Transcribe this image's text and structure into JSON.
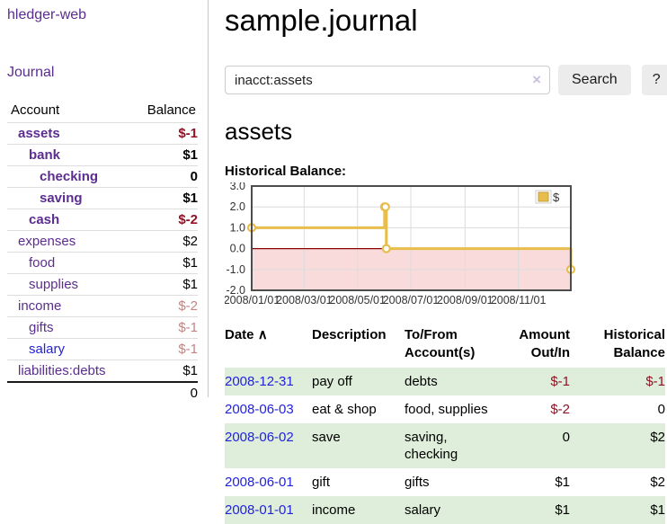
{
  "sidebar": {
    "brand": "hledger-web",
    "journal_label": "Journal",
    "accounts_header": {
      "account": "Account",
      "balance": "Balance"
    },
    "accounts": [
      {
        "name": "assets",
        "balance": "$-1",
        "indent": 1,
        "bold": true,
        "balance_tone": "neg-strong",
        "link_tone": "purple"
      },
      {
        "name": "bank",
        "balance": "$1",
        "indent": 2,
        "bold": true,
        "balance_tone": "pos",
        "link_tone": "purple"
      },
      {
        "name": "checking",
        "balance": "0",
        "indent": 3,
        "bold": true,
        "balance_tone": "pos",
        "link_tone": "purple"
      },
      {
        "name": "saving",
        "balance": "$1",
        "indent": 3,
        "bold": true,
        "balance_tone": "pos",
        "link_tone": "purple"
      },
      {
        "name": "cash",
        "balance": "$-2",
        "indent": 2,
        "bold": true,
        "balance_tone": "neg-strong",
        "link_tone": "purple"
      },
      {
        "name": "expenses",
        "balance": "$2",
        "indent": 1,
        "bold": false,
        "balance_tone": "pos",
        "link_tone": "purple"
      },
      {
        "name": "food",
        "balance": "$1",
        "indent": 2,
        "bold": false,
        "balance_tone": "pos",
        "link_tone": "purple"
      },
      {
        "name": "supplies",
        "balance": "$1",
        "indent": 2,
        "bold": false,
        "balance_tone": "pos",
        "link_tone": "purple"
      },
      {
        "name": "income",
        "balance": "$-2",
        "indent": 1,
        "bold": false,
        "balance_tone": "neg-soft",
        "link_tone": "purple"
      },
      {
        "name": "gifts",
        "balance": "$-1",
        "indent": 2,
        "bold": false,
        "balance_tone": "neg-soft",
        "link_tone": "purple"
      },
      {
        "name": "salary",
        "balance": "$-1",
        "indent": 2,
        "bold": false,
        "balance_tone": "neg-soft",
        "link_tone": "blue"
      },
      {
        "name": "liabilities:debts",
        "balance": "$1",
        "indent": 1,
        "bold": false,
        "balance_tone": "pos",
        "link_tone": "purple"
      }
    ],
    "total": "0"
  },
  "main": {
    "title": "sample.journal",
    "search": {
      "query": "inacct:assets",
      "clear_icon": "×",
      "button_label": "Search",
      "help_label": "?"
    },
    "account_heading": "assets",
    "register": {
      "headers": {
        "date": "Date",
        "sort_icon": "∧",
        "description": "Description",
        "accounts": "To/From Account(s)",
        "amount": "Amount Out/In",
        "balance": "Historical Balance"
      },
      "rows": [
        {
          "date": "2008-12-31",
          "description": "pay off",
          "accounts": "debts",
          "amount": "$-1",
          "amount_tone": "neg",
          "balance": "$-1",
          "balance_tone": "neg"
        },
        {
          "date": "2008-06-03",
          "description": "eat & shop",
          "accounts": "food, supplies",
          "amount": "$-2",
          "amount_tone": "neg",
          "balance": "0",
          "balance_tone": "pos"
        },
        {
          "date": "2008-06-02",
          "description": "save",
          "accounts": "saving, checking",
          "amount": "0",
          "amount_tone": "pos",
          "balance": "$2",
          "balance_tone": "pos"
        },
        {
          "date": "2008-06-01",
          "description": "gift",
          "accounts": "gifts",
          "amount": "$1",
          "amount_tone": "pos",
          "balance": "$2",
          "balance_tone": "pos"
        },
        {
          "date": "2008-01-01",
          "description": "income",
          "accounts": "salary",
          "amount": "$1",
          "amount_tone": "pos",
          "balance": "$1",
          "balance_tone": "pos"
        }
      ]
    }
  },
  "chart_data": {
    "type": "line",
    "step": true,
    "title": "Historical Balance:",
    "legend": {
      "label": "$",
      "position": "top-right"
    },
    "series": [
      {
        "name": "$",
        "color": "#e8bd4b",
        "points": [
          {
            "date": "2008-01-01",
            "day": 0,
            "value": 1
          },
          {
            "date": "2008-06-01",
            "day": 152,
            "value": 2
          },
          {
            "date": "2008-06-02",
            "day": 153,
            "value": 2
          },
          {
            "date": "2008-06-03",
            "day": 154,
            "value": 0
          },
          {
            "date": "2008-12-31",
            "day": 365,
            "value": -1
          }
        ]
      }
    ],
    "x_ticks": [
      {
        "label": "2008/01/01",
        "day": 0
      },
      {
        "label": "2008/03/01",
        "day": 60
      },
      {
        "label": "2008/05/01",
        "day": 121
      },
      {
        "label": "2008/07/01",
        "day": 182
      },
      {
        "label": "2008/09/01",
        "day": 244
      },
      {
        "label": "2008/11/01",
        "day": 305
      }
    ],
    "y_ticks": [
      3.0,
      2.0,
      1.0,
      0.0,
      -1.0,
      -2.0
    ],
    "xlim_days": [
      0,
      365
    ],
    "ylim": [
      -2,
      3
    ],
    "grid": true,
    "negative_region_color": "#f9dbdb",
    "zero_line_color": "#8b0000",
    "grid_color": "#dcdcdc",
    "border_color": "#4d4d4d"
  },
  "colors": {
    "link_purple": "#5b2d90",
    "link_blue": "#2222dd",
    "negative_strong": "#8d1325",
    "negative_soft": "#c28484",
    "row_green": "#dfeeda",
    "chart_gold": "#e8bd4b",
    "chart_negative_area": "#f9dbdb",
    "zero_line": "#8b0000"
  }
}
